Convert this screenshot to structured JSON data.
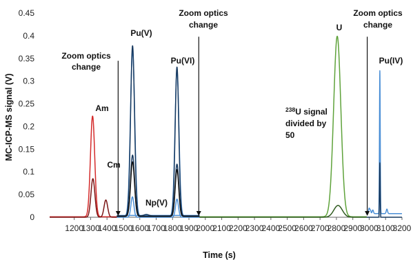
{
  "chart_data": {
    "type": "line",
    "title": "",
    "xlabel": "Time (s)",
    "ylabel": "MC-ICP-MS signal (V)",
    "xlim": [
      1050,
      3200
    ],
    "ylim": [
      0,
      0.45
    ],
    "x_ticks": [
      1200,
      1300,
      1400,
      1500,
      1600,
      1700,
      1800,
      1900,
      2000,
      2100,
      2200,
      2300,
      2400,
      2500,
      2600,
      2700,
      2800,
      2900,
      3000,
      3100,
      3200
    ],
    "y_ticks": [
      0,
      0.05,
      0.1,
      0.15,
      0.2,
      0.25,
      0.3,
      0.35,
      0.4,
      0.45
    ],
    "y_tick_labels": [
      "0",
      "0.05",
      "0.1",
      "0.15",
      "0.2",
      "0.25",
      "0.3",
      "0.35",
      "0.4",
      "0.45"
    ],
    "grid": false,
    "colors": {
      "red": "#d42a2a",
      "darkred": "#7a1414",
      "blue": "#4b8fd6",
      "navy": "#16385e",
      "green": "#5ea23a",
      "darkgreen": "#2e5a1e",
      "black": "#111111"
    },
    "segments": [
      {
        "color": "red",
        "range": [
          1050,
          1460
        ],
        "baseline": 0.001,
        "peaks": [
          {
            "x": 1312,
            "h": 0.222,
            "w": 13
          }
        ]
      },
      {
        "color": "darkred",
        "range": [
          1050,
          1460
        ],
        "baseline": 0.0,
        "peaks": [
          {
            "x": 1314,
            "h": 0.085,
            "w": 12
          },
          {
            "x": 1393,
            "h": 0.038,
            "w": 11
          }
        ]
      },
      {
        "color": "blue",
        "range": [
          1460,
          1965
        ],
        "baseline": 0.002,
        "peaks": [
          {
            "x": 1556,
            "h": 0.365,
            "w": 13
          },
          {
            "x": 1827,
            "h": 0.322,
            "w": 12
          },
          {
            "x": 1640,
            "h": 0.004,
            "w": 15
          }
        ]
      },
      {
        "color": "blue",
        "range": [
          1460,
          1965
        ],
        "baseline": 0.0,
        "peaks": [
          {
            "x": 1555,
            "h": 0.045,
            "w": 9
          },
          {
            "x": 1827,
            "h": 0.04,
            "w": 9
          }
        ]
      },
      {
        "color": "navy",
        "range": [
          1460,
          1965
        ],
        "baseline": 0.003,
        "peaks": [
          {
            "x": 1556,
            "h": 0.375,
            "w": 12
          },
          {
            "x": 1827,
            "h": 0.328,
            "w": 11
          },
          {
            "x": 1640,
            "h": 0.003,
            "w": 15
          }
        ]
      },
      {
        "color": "navy",
        "range": [
          1460,
          1965
        ],
        "baseline": 0.002,
        "peaks": [
          {
            "x": 1556,
            "h": 0.135,
            "w": 12
          },
          {
            "x": 1827,
            "h": 0.115,
            "w": 11
          }
        ]
      },
      {
        "color": "black",
        "range": [
          1460,
          1965
        ],
        "baseline": 0.002,
        "peaks": [
          {
            "x": 1556,
            "h": 0.12,
            "w": 12
          },
          {
            "x": 1827,
            "h": 0.103,
            "w": 11
          }
        ]
      },
      {
        "color": "green",
        "range": [
          1965,
          2985
        ],
        "baseline": 0.001,
        "peaks": [
          {
            "x": 2805,
            "h": 0.398,
            "w": 22
          }
        ]
      },
      {
        "color": "darkgreen",
        "range": [
          1965,
          2985
        ],
        "baseline": 0.0,
        "peaks": [
          {
            "x": 2810,
            "h": 0.026,
            "w": 26
          }
        ]
      },
      {
        "color": "blue",
        "range": [
          2985,
          3200
        ],
        "baseline": 0.008,
        "peaks": [
          {
            "x": 3065,
            "h": 0.315,
            "w": 2.2
          },
          {
            "x": 3000,
            "h": 0.012,
            "w": 4
          },
          {
            "x": 3008,
            "h": 0.006,
            "w": 3
          },
          {
            "x": 3022,
            "h": 0.008,
            "w": 4
          },
          {
            "x": 3108,
            "h": 0.01,
            "w": 4
          }
        ]
      },
      {
        "color": "navy",
        "range": [
          2985,
          3200
        ],
        "baseline": 0.0,
        "peaks": [
          {
            "x": 3065,
            "h": 0.12,
            "w": 2.0
          }
        ]
      }
    ],
    "baseline_extension": {
      "color": "blue",
      "range": [
        1460,
        1965
      ],
      "y": 0.004
    },
    "arrows": [
      {
        "x": 1468,
        "y_top": 0.345
      },
      {
        "x": 1960,
        "y_top": 0.398
      },
      {
        "x": 2988,
        "y_top": 0.398
      }
    ],
    "labels": {
      "am": "Am",
      "cm": "Cm",
      "npv": "Np(V)",
      "puv": "Pu(V)",
      "puvi": "Pu(VI)",
      "u": "U",
      "puiv": "Pu(IV)",
      "zoom1_l1": "Zoom optics",
      "zoom1_l2": "change",
      "zoom2_l1": "Zoom optics",
      "zoom2_l2": "change",
      "zoom3_l1": "Zoom optics",
      "zoom3_l2": "change",
      "u238_sup": "238",
      "u238_l1": "U signal",
      "u238_l2": "divided by",
      "u238_l3": "50"
    }
  }
}
